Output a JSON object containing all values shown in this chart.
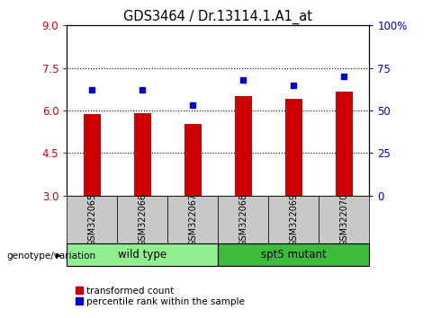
{
  "title": "GDS3464 / Dr.13114.1.A1_at",
  "samples": [
    "GSM322065",
    "GSM322066",
    "GSM322067",
    "GSM322068",
    "GSM322069",
    "GSM322070"
  ],
  "bar_values": [
    5.88,
    5.9,
    5.52,
    6.5,
    6.42,
    6.68
  ],
  "percentile_values": [
    62,
    62,
    53,
    68,
    65,
    70
  ],
  "bar_color": "#cc0000",
  "dot_color": "#0000cc",
  "ylim_left": [
    3,
    9
  ],
  "ylim_right": [
    0,
    100
  ],
  "yticks_left": [
    3,
    4.5,
    6,
    7.5,
    9
  ],
  "yticks_right": [
    0,
    25,
    50,
    75,
    100
  ],
  "ytick_labels_right": [
    "0",
    "25",
    "50",
    "75",
    "100%"
  ],
  "hlines": [
    4.5,
    6.0,
    7.5
  ],
  "groups": [
    {
      "label": "wild type",
      "indices": [
        0,
        1,
        2
      ],
      "color": "#90ee90"
    },
    {
      "label": "spt5 mutant",
      "indices": [
        3,
        4,
        5
      ],
      "color": "#3dbb3d"
    }
  ],
  "genotype_label": "genotype/variation",
  "legend_bar_label": "transformed count",
  "legend_dot_label": "percentile rank within the sample",
  "bar_width": 0.35,
  "label_bg": "#c8c8c8",
  "label_border": "#888888"
}
